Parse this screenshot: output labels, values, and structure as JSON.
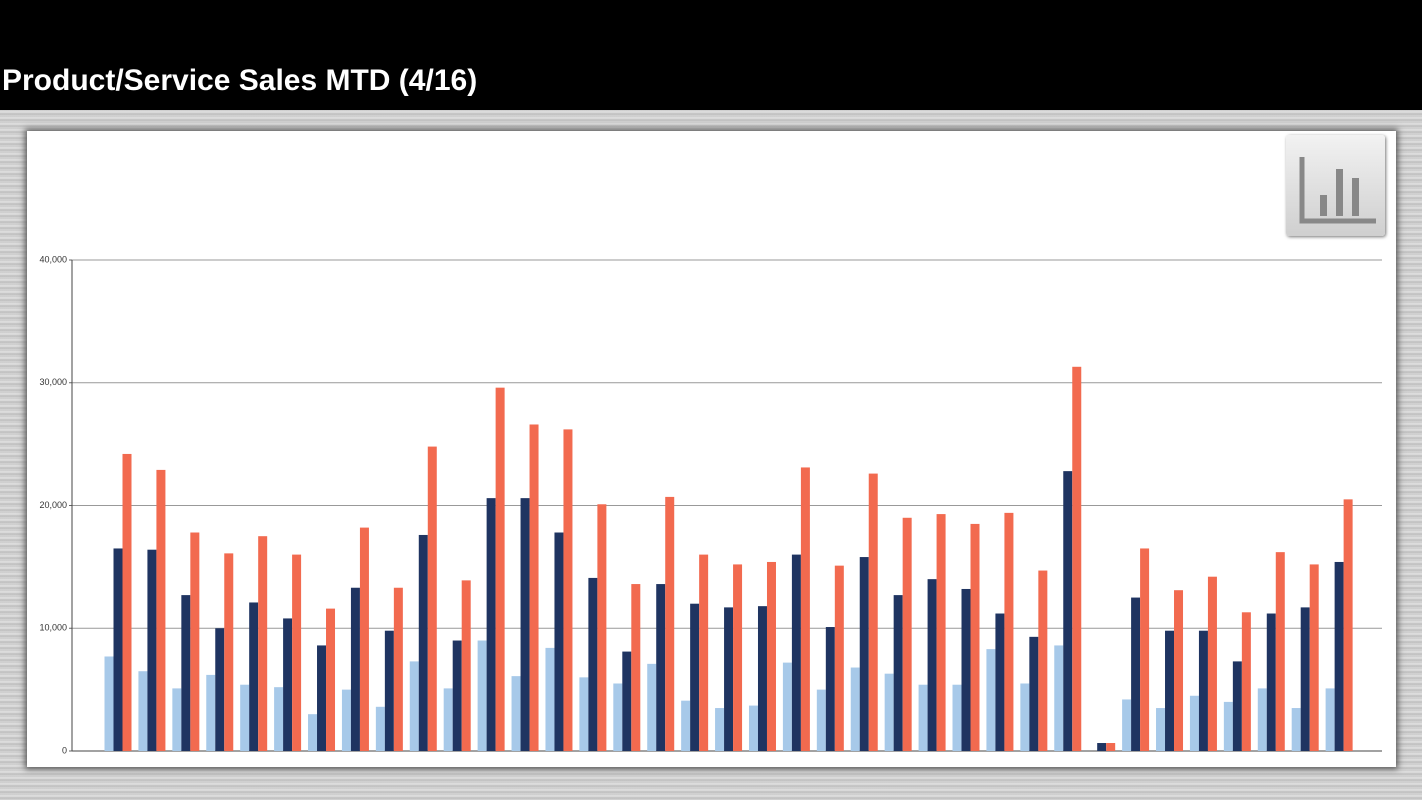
{
  "chart_data": {
    "type": "bar",
    "title": "Product/Service Sales MTD (4/16)",
    "categories": [
      null,
      null,
      null,
      null,
      null,
      null,
      null,
      null,
      null,
      null,
      null,
      null,
      null,
      null,
      null,
      null,
      null,
      null,
      null,
      null,
      null,
      null,
      null,
      null,
      null,
      null,
      null,
      null,
      null,
      null,
      null,
      null,
      null,
      null,
      null,
      null,
      null
    ],
    "series": [
      {
        "color": "#a7c9e9",
        "values": [
          7.7,
          6.5,
          5.1,
          6.2,
          5.4,
          5.2,
          3.0,
          5.0,
          3.6,
          7.3,
          5.1,
          9.0,
          6.1,
          8.4,
          6.0,
          5.5,
          7.1,
          4.1,
          3.5,
          3.7,
          7.2,
          5.0,
          6.8,
          6.3,
          5.4,
          5.4,
          8.3,
          5.5,
          8.6,
          0,
          4.2,
          3.5,
          4.5,
          4.0,
          5.1,
          3.5,
          5.1
        ]
      },
      {
        "color": "#1f3461",
        "values": [
          16.5,
          16.4,
          12.7,
          10.0,
          12.1,
          10.8,
          8.6,
          13.3,
          9.8,
          17.6,
          9.0,
          20.6,
          20.6,
          17.8,
          14.1,
          8.1,
          13.6,
          12.0,
          11.7,
          11.8,
          16.0,
          10.1,
          15.8,
          12.7,
          14.0,
          13.2,
          11.2,
          9.3,
          22.8,
          0.65,
          12.5,
          9.8,
          9.8,
          7.3,
          11.2,
          11.7,
          15.4
        ]
      },
      {
        "color": "#f26a4f",
        "values": [
          24.2,
          22.9,
          17.8,
          16.1,
          17.5,
          16.0,
          11.6,
          18.2,
          13.3,
          24.8,
          13.9,
          29.6,
          26.6,
          26.2,
          20.1,
          13.6,
          20.7,
          16.0,
          15.2,
          15.4,
          23.1,
          15.1,
          22.6,
          19.0,
          19.3,
          18.5,
          19.4,
          14.7,
          31.3,
          0.65,
          16.5,
          13.1,
          14.2,
          11.3,
          16.2,
          15.2,
          20.5
        ]
      }
    ],
    "ylim": [
      0,
      40
    ],
    "yticks": [
      0,
      {
        "value": 10,
        "label": "10,000"
      },
      {
        "value": 20,
        "label": "20,000"
      },
      {
        "value": 30,
        "label": "30,000"
      },
      {
        "value": 40,
        "label": "40,000"
      }
    ],
    "grid": true
  }
}
